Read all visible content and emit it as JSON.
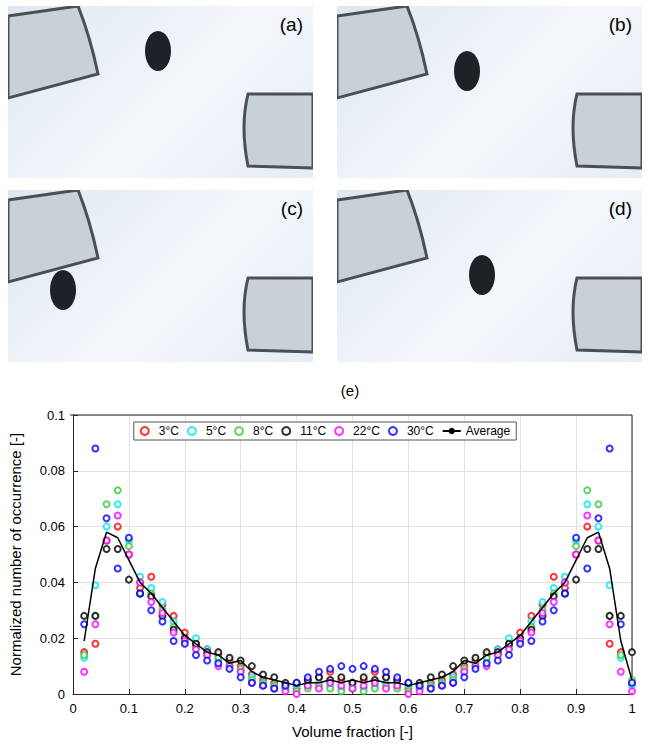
{
  "panels": [
    {
      "label": "(a)"
    },
    {
      "label": "(b)"
    },
    {
      "label": "(c)"
    },
    {
      "label": "(d)"
    }
  ],
  "chart_data": {
    "type": "scatter",
    "title": "(e)",
    "x_label": "Volume fraction [-]",
    "y_label": "Normalized number of occurrence [-]",
    "xlim": [
      0,
      1
    ],
    "xticks": [
      0,
      0.1,
      0.2,
      0.3,
      0.4,
      0.5,
      0.6,
      0.7,
      0.8,
      0.9,
      1
    ],
    "ylim": [
      0,
      0.1
    ],
    "yticks": [
      0,
      0.02,
      0.04,
      0.06,
      0.08,
      0.1
    ],
    "grid": true,
    "legend": "top",
    "x": [
      0.02,
      0.04,
      0.06,
      0.08,
      0.1,
      0.12,
      0.14,
      0.16,
      0.18,
      0.2,
      0.22,
      0.24,
      0.26,
      0.28,
      0.3,
      0.32,
      0.34,
      0.36,
      0.38,
      0.4,
      0.42,
      0.44,
      0.46,
      0.48,
      0.5,
      0.52,
      0.54,
      0.56,
      0.58,
      0.6,
      0.62,
      0.64,
      0.66,
      0.68,
      0.7,
      0.72,
      0.74,
      0.76,
      0.78,
      0.8,
      0.82,
      0.84,
      0.86,
      0.88,
      0.9,
      0.92,
      0.94,
      0.96,
      0.98,
      1
    ],
    "series": [
      {
        "name": "3°C",
        "color": "#ff0000",
        "marker": "circle",
        "values": [
          0.015,
          0.018,
          0.055,
          0.06,
          0.05,
          0.038,
          0.042,
          0.032,
          0.028,
          0.022,
          0.018,
          0.016,
          0.014,
          0.012,
          0.01,
          0.007,
          0.005,
          0.004,
          0.003,
          0.002,
          0.005,
          0.006,
          0.008,
          0.005,
          0.004,
          0.005,
          0.008,
          0.006,
          0.005,
          0.002,
          0.003,
          0.004,
          0.005,
          0.007,
          0.01,
          0.012,
          0.014,
          0.016,
          0.018,
          0.022,
          0.028,
          0.032,
          0.042,
          0.038,
          0.05,
          0.06,
          0.055,
          0.018,
          0.015,
          0.004
        ]
      },
      {
        "name": "5°C",
        "color": "#00e5ee",
        "marker": "circle",
        "values": [
          0.013,
          0.039,
          0.06,
          0.068,
          0.055,
          0.042,
          0.038,
          0.033,
          0.026,
          0.02,
          0.02,
          0.016,
          0.012,
          0.01,
          0.008,
          0.006,
          0.004,
          0.003,
          0.002,
          0.003,
          0.003,
          0.004,
          0.003,
          0.002,
          0.003,
          0.002,
          0.003,
          0.004,
          0.003,
          0.003,
          0.002,
          0.003,
          0.004,
          0.006,
          0.008,
          0.01,
          0.012,
          0.016,
          0.02,
          0.02,
          0.026,
          0.033,
          0.038,
          0.042,
          0.055,
          0.068,
          0.06,
          0.039,
          0.013,
          0.003
        ]
      },
      {
        "name": "8°C",
        "color": "#33cc33",
        "marker": "circle",
        "values": [
          0.014,
          0.028,
          0.068,
          0.073,
          0.053,
          0.04,
          0.036,
          0.03,
          0.024,
          0.019,
          0.017,
          0.014,
          0.013,
          0.011,
          0.009,
          0.005,
          0.004,
          0.003,
          0.002,
          0.001,
          0.002,
          0.003,
          0.002,
          0.001,
          0.002,
          0.001,
          0.002,
          0.003,
          0.002,
          0.001,
          0.002,
          0.003,
          0.004,
          0.005,
          0.009,
          0.011,
          0.013,
          0.014,
          0.017,
          0.019,
          0.024,
          0.03,
          0.036,
          0.04,
          0.053,
          0.073,
          0.068,
          0.028,
          0.014,
          0.005
        ]
      },
      {
        "name": "11°C",
        "color": "#000000",
        "marker": "circle",
        "values": [
          0.028,
          0.028,
          0.052,
          0.052,
          0.041,
          0.036,
          0.035,
          0.028,
          0.023,
          0.02,
          0.018,
          0.015,
          0.015,
          0.013,
          0.012,
          0.01,
          0.007,
          0.006,
          0.004,
          0.004,
          0.005,
          0.006,
          0.005,
          0.006,
          0.004,
          0.006,
          0.005,
          0.006,
          0.005,
          0.004,
          0.004,
          0.006,
          0.007,
          0.01,
          0.012,
          0.013,
          0.015,
          0.015,
          0.018,
          0.02,
          0.023,
          0.028,
          0.035,
          0.036,
          0.041,
          0.052,
          0.052,
          0.028,
          0.028,
          0.015
        ]
      },
      {
        "name": "22°C",
        "color": "#ff00ff",
        "marker": "circle",
        "values": [
          0.008,
          0.025,
          0.055,
          0.064,
          0.05,
          0.04,
          0.033,
          0.029,
          0.022,
          0.019,
          0.016,
          0.014,
          0.01,
          0.01,
          0.008,
          0.004,
          0.003,
          0.002,
          0.001,
          0.0,
          0.003,
          0.002,
          0.004,
          0.003,
          0.002,
          0.003,
          0.004,
          0.002,
          0.003,
          0.0,
          0.001,
          0.002,
          0.003,
          0.004,
          0.008,
          0.01,
          0.01,
          0.014,
          0.016,
          0.019,
          0.022,
          0.029,
          0.033,
          0.04,
          0.05,
          0.064,
          0.055,
          0.025,
          0.008,
          0.001
        ]
      },
      {
        "name": "30°C",
        "color": "#0000ff",
        "marker": "circle",
        "values": [
          0.025,
          0.088,
          0.063,
          0.045,
          0.056,
          0.036,
          0.03,
          0.026,
          0.019,
          0.018,
          0.014,
          0.012,
          0.011,
          0.009,
          0.006,
          0.004,
          0.003,
          0.002,
          0.003,
          0.004,
          0.006,
          0.008,
          0.009,
          0.01,
          0.009,
          0.01,
          0.009,
          0.008,
          0.006,
          0.004,
          0.003,
          0.002,
          0.003,
          0.004,
          0.006,
          0.009,
          0.011,
          0.012,
          0.014,
          0.018,
          0.019,
          0.026,
          0.03,
          0.036,
          0.056,
          0.045,
          0.063,
          0.088,
          0.025,
          0.004
        ]
      },
      {
        "name": "Average",
        "color": "#000000",
        "type": "line",
        "line_style": "solid",
        "values": [
          0.019,
          0.045,
          0.058,
          0.056,
          0.048,
          0.04,
          0.036,
          0.031,
          0.026,
          0.021,
          0.018,
          0.015,
          0.014,
          0.011,
          0.012,
          0.008,
          0.006,
          0.005,
          0.004,
          0.003,
          0.004,
          0.004,
          0.005,
          0.004,
          0.005,
          0.004,
          0.005,
          0.004,
          0.004,
          0.003,
          0.004,
          0.005,
          0.006,
          0.008,
          0.012,
          0.011,
          0.014,
          0.015,
          0.018,
          0.021,
          0.026,
          0.031,
          0.036,
          0.04,
          0.048,
          0.056,
          0.058,
          0.045,
          0.019,
          0.005
        ]
      }
    ]
  }
}
